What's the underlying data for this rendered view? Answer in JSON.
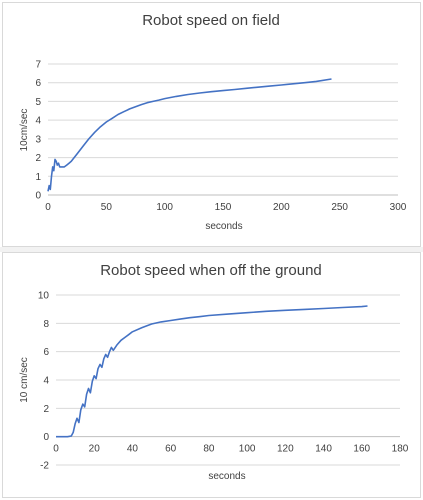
{
  "chart_data": [
    {
      "type": "line",
      "title": "Robot speed on field",
      "xlabel": "seconds",
      "ylabel": "10cm/sec",
      "xlim": [
        0,
        300
      ],
      "ylim": [
        0,
        7
      ],
      "xticks": [
        "0",
        "50",
        "100",
        "150",
        "200",
        "250",
        "300"
      ],
      "yticks": [
        "0",
        "1",
        "2",
        "3",
        "4",
        "5",
        "6",
        "7"
      ],
      "grid": "horizontal",
      "line_color": "#4472c4",
      "series": [
        {
          "x": [
            0,
            1,
            2,
            3,
            4,
            5,
            6,
            7,
            8,
            9,
            10,
            12,
            14,
            16,
            18,
            20,
            25,
            30,
            35,
            40,
            45,
            50,
            55,
            60,
            65,
            70,
            75,
            80,
            85,
            90,
            95,
            100,
            110,
            120,
            130,
            140,
            150,
            160,
            170,
            180,
            190,
            200,
            210,
            220,
            230,
            243
          ],
          "y": [
            0.2,
            0.5,
            0.3,
            1.0,
            1.5,
            1.3,
            1.9,
            1.8,
            1.6,
            1.7,
            1.5,
            1.5,
            1.5,
            1.6,
            1.7,
            1.8,
            2.2,
            2.6,
            3.0,
            3.35,
            3.65,
            3.9,
            4.1,
            4.3,
            4.45,
            4.6,
            4.72,
            4.83,
            4.93,
            5.0,
            5.07,
            5.15,
            5.27,
            5.37,
            5.45,
            5.52,
            5.58,
            5.64,
            5.7,
            5.76,
            5.82,
            5.88,
            5.94,
            6.0,
            6.07,
            6.2
          ]
        }
      ]
    },
    {
      "type": "line",
      "title": "Robot speed when off the ground",
      "xlabel": "seconds",
      "ylabel": "10 cm/sec",
      "xlim": [
        0,
        180
      ],
      "ylim": [
        -2,
        10
      ],
      "xticks": [
        "0",
        "20",
        "40",
        "60",
        "80",
        "100",
        "120",
        "140",
        "160",
        "180"
      ],
      "yticks": [
        "-2",
        "0",
        "2",
        "4",
        "6",
        "8",
        "10"
      ],
      "grid": "horizontal",
      "line_color": "#4472c4",
      "series": [
        {
          "x": [
            0,
            2,
            4,
            6,
            8,
            9,
            10,
            11,
            12,
            13,
            14,
            15,
            16,
            17,
            18,
            19,
            20,
            21,
            22,
            23,
            24,
            25,
            26,
            27,
            28,
            29,
            30,
            32,
            34,
            36,
            38,
            40,
            45,
            50,
            55,
            60,
            65,
            70,
            75,
            80,
            90,
            100,
            110,
            120,
            130,
            140,
            150,
            160,
            163
          ],
          "y": [
            0,
            0,
            0,
            0,
            0.05,
            0.3,
            0.9,
            1.3,
            1.0,
            1.9,
            2.3,
            2.1,
            3.0,
            3.4,
            3.1,
            3.9,
            4.3,
            4.1,
            4.8,
            5.1,
            4.9,
            5.5,
            5.8,
            5.6,
            6.0,
            6.3,
            6.1,
            6.5,
            6.8,
            7.0,
            7.2,
            7.4,
            7.7,
            7.95,
            8.1,
            8.2,
            8.3,
            8.4,
            8.47,
            8.55,
            8.65,
            8.75,
            8.85,
            8.92,
            8.98,
            9.05,
            9.12,
            9.18,
            9.22
          ]
        }
      ]
    }
  ]
}
